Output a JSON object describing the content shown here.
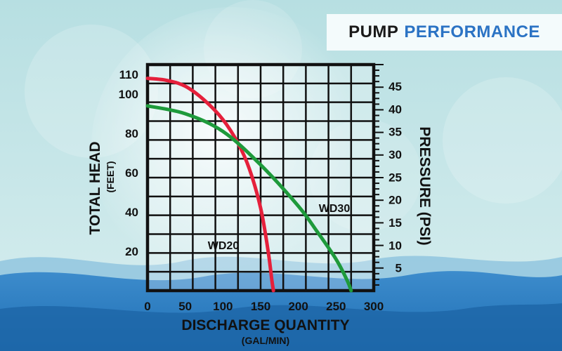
{
  "header": {
    "title_part1": "PUMP",
    "title_part2": "PERFORMANCE"
  },
  "colors": {
    "accent": "#2b73c4",
    "wd20": "#e5203b",
    "wd30": "#1e9a3b",
    "grid": "#111111"
  },
  "chart_data": {
    "type": "line",
    "title": "PUMP PERFORMANCE",
    "xlabel": "DISCHARGE QUANTITY",
    "xunit": "(GAL/MIN)",
    "ylabel": "TOTAL HEAD",
    "yunit": "(FEET)",
    "y2label": "PRESSURE (PSI)",
    "xlim": [
      0,
      300
    ],
    "ylim": [
      0,
      115
    ],
    "y2lim": [
      0,
      49.8
    ],
    "x_ticks": [
      "0",
      "50",
      "100",
      "150",
      "200",
      "250",
      "300"
    ],
    "y_ticks": [
      {
        "value": 20,
        "label": "20"
      },
      {
        "value": 40,
        "label": "40"
      },
      {
        "value": 60,
        "label": "60"
      },
      {
        "value": 80,
        "label": "80"
      },
      {
        "value": 100,
        "label": "100"
      },
      {
        "value": 110,
        "label": "110"
      }
    ],
    "y2_ticks": [
      {
        "value": 5,
        "label": "5"
      },
      {
        "value": 10,
        "label": "10"
      },
      {
        "value": 15,
        "label": "15"
      },
      {
        "value": 20,
        "label": "20"
      },
      {
        "value": 25,
        "label": "25"
      },
      {
        "value": 30,
        "label": "30"
      },
      {
        "value": 35,
        "label": "35"
      },
      {
        "value": 40,
        "label": "40"
      },
      {
        "value": 45,
        "label": "45"
      }
    ],
    "grid": true,
    "series": [
      {
        "name": "WD20",
        "color": "#e5203b",
        "x": [
          0,
          25,
          50,
          75,
          100,
          120,
          135,
          150,
          160,
          165,
          167
        ],
        "y": [
          108,
          107,
          104,
          97,
          87,
          75,
          62,
          42,
          20,
          5,
          0
        ]
      },
      {
        "name": "WD30",
        "color": "#1e9a3b",
        "x": [
          0,
          50,
          100,
          150,
          200,
          225,
          250,
          265,
          270
        ],
        "y": [
          94,
          90,
          81,
          64,
          43,
          30,
          16,
          5,
          0
        ]
      }
    ]
  }
}
